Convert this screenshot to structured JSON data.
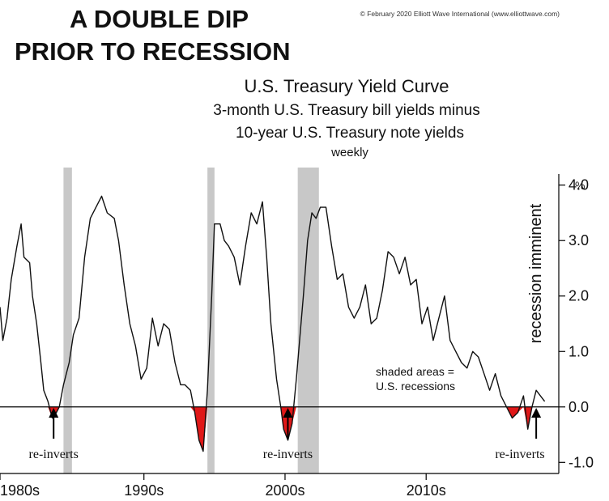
{
  "headline": [
    "A DOUBLE DIP",
    "PRIOR TO RECESSION"
  ],
  "credit": "© February 2020 Elliott Wave International (www.elliottwave.com)",
  "chart_data": {
    "type": "line",
    "title": "U.S. Treasury Yield Curve",
    "subtitle_lines": [
      "3-month U.S. Treasury bill yields minus",
      "10-year U.S. Treasury note yields"
    ],
    "frequency": "weekly",
    "ylabel": "recession imminent",
    "y_unit": "%",
    "ylim": [
      -1.2,
      4.2
    ],
    "y_ticks": [
      4.0,
      3.0,
      2.0,
      1.0,
      0.0,
      -1.0
    ],
    "y_tick_labels": [
      "4.0",
      "3.0",
      "2.0",
      "1.0",
      "0.0",
      "-1.0"
    ],
    "xlim": [
      1980.8,
      2020.4
    ],
    "x_ticks": [
      {
        "label": "1980s",
        "x": 1980.8
      },
      {
        "label": "1990s",
        "x": 1991.0
      },
      {
        "label": "2000s",
        "x": 2001.0
      },
      {
        "label": "2010s",
        "x": 2011.0
      }
    ],
    "recessions": [
      [
        1985.3,
        1985.9
      ],
      [
        1995.5,
        1996.0
      ],
      [
        2001.9,
        2003.4
      ]
    ],
    "recession_note": [
      "shaded areas =",
      "U.S. recessions"
    ],
    "annotations": [
      {
        "label": "re-inverts",
        "x": 1984.6
      },
      {
        "label": "re-inverts",
        "x": 2001.2
      },
      {
        "label": "re-inverts",
        "x": 2018.8
      }
    ],
    "series": [
      {
        "x": [
          1980.8,
          1981.0,
          1981.3,
          1981.6,
          1982.0,
          1982.3,
          1982.5,
          1982.9,
          1983.1,
          1983.4,
          1983.7,
          1983.9,
          1984.2,
          1984.5,
          1984.8,
          1985.0,
          1985.3,
          1985.7,
          1986.0,
          1986.4,
          1986.8,
          1987.2,
          1987.6,
          1988.0,
          1988.4,
          1988.9,
          1989.2,
          1989.6,
          1990.0,
          1990.4,
          1990.8,
          1991.2,
          1991.6,
          1992.0,
          1992.4,
          1992.8,
          1993.2,
          1993.6,
          1993.9,
          1994.3,
          1994.6,
          1994.9,
          1995.2,
          1995.5,
          1995.8,
          1996.0,
          1996.4,
          1996.7,
          1997.0,
          1997.4,
          1997.8,
          1998.2,
          1998.6,
          1999.0,
          1999.4,
          1999.7,
          2000.0,
          2000.4,
          2000.7,
          2000.9,
          2001.2,
          2001.5,
          2001.8,
          2002.1,
          2002.3,
          2002.6,
          2002.9,
          2003.2,
          2003.5,
          2003.9,
          2004.3,
          2004.7,
          2005.1,
          2005.5,
          2005.9,
          2006.3,
          2006.7,
          2007.1,
          2007.5,
          2007.9,
          2008.3,
          2008.7,
          2009.1,
          2009.5,
          2009.9,
          2010.3,
          2010.7,
          2011.1,
          2011.5,
          2011.9,
          2012.3,
          2012.7,
          2013.1,
          2013.5,
          2013.9,
          2014.3,
          2014.7,
          2015.1,
          2015.5,
          2015.9,
          2016.3,
          2016.7,
          2017.1,
          2017.5,
          2017.9,
          2018.2,
          2018.5,
          2018.8,
          2019.1,
          2019.4
        ],
        "values": [
          1.8,
          1.2,
          1.6,
          2.3,
          2.9,
          3.3,
          2.7,
          2.6,
          2.0,
          1.5,
          0.8,
          0.3,
          0.1,
          -0.2,
          -0.1,
          0.0,
          0.4,
          0.8,
          1.3,
          1.6,
          2.7,
          3.4,
          3.6,
          3.8,
          3.5,
          3.4,
          3.0,
          2.2,
          1.5,
          1.1,
          0.5,
          0.7,
          1.6,
          1.1,
          1.5,
          1.4,
          0.8,
          0.4,
          0.4,
          0.3,
          -0.1,
          -0.6,
          -0.8,
          0.3,
          2.0,
          3.3,
          3.3,
          3.0,
          2.9,
          2.7,
          2.2,
          2.9,
          3.5,
          3.3,
          3.7,
          2.7,
          1.5,
          0.5,
          0.0,
          -0.4,
          -0.6,
          -0.3,
          0.5,
          1.4,
          2.0,
          3.0,
          3.5,
          3.4,
          3.6,
          3.6,
          2.9,
          2.3,
          2.4,
          1.8,
          1.6,
          1.8,
          2.2,
          1.5,
          1.6,
          2.1,
          2.8,
          2.7,
          2.4,
          2.7,
          2.2,
          2.3,
          1.5,
          1.8,
          1.2,
          1.6,
          2.0,
          1.2,
          1.0,
          0.8,
          0.7,
          1.0,
          0.9,
          0.6,
          0.3,
          0.6,
          0.2,
          0.0,
          -0.2,
          -0.1,
          0.2,
          -0.4,
          0.0,
          0.3,
          0.2,
          0.1
        ]
      }
    ]
  }
}
